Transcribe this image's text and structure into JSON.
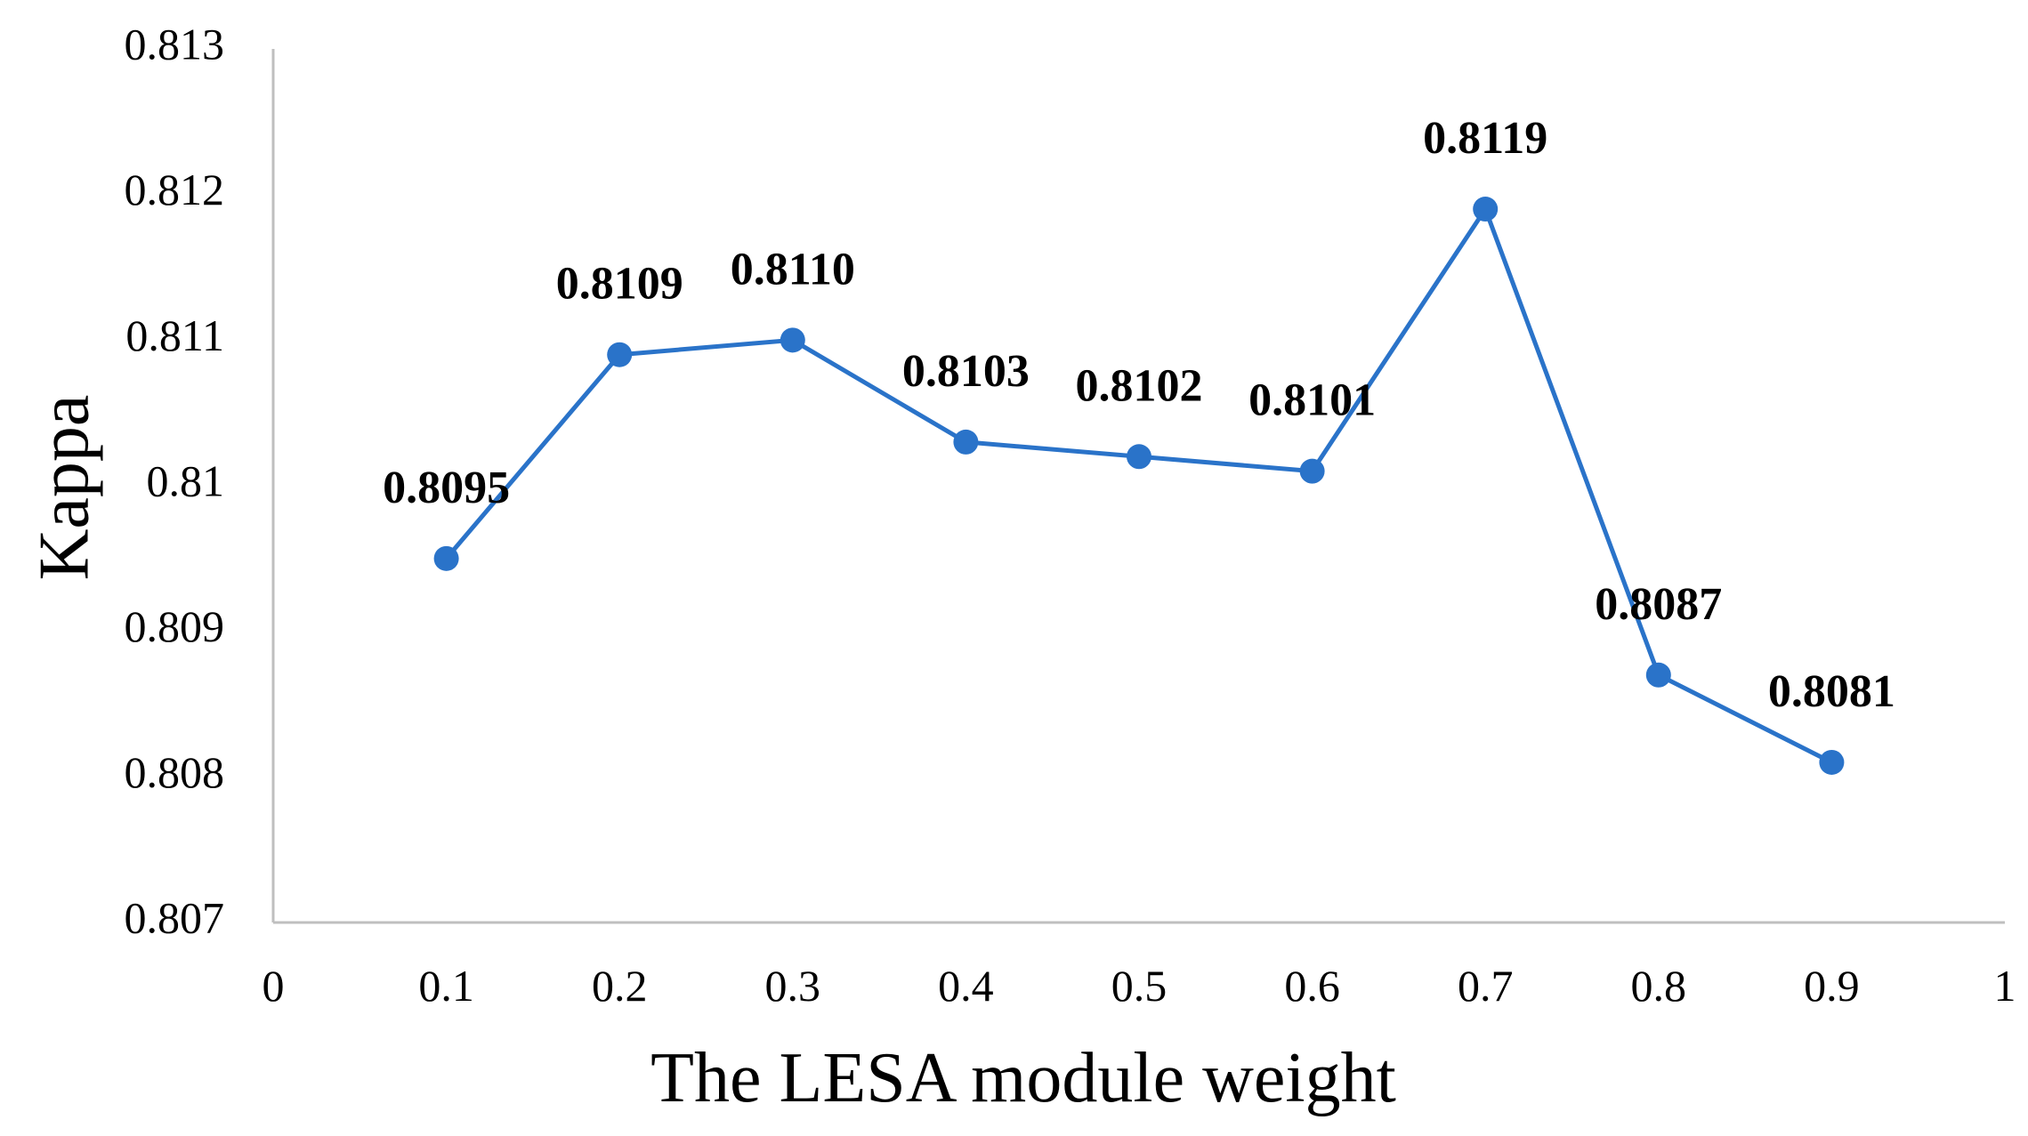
{
  "chart_data": {
    "type": "line",
    "title": "",
    "xlabel": "The LESA module weight",
    "ylabel": "Kappa",
    "xlim": [
      0,
      1
    ],
    "ylim": [
      0.807,
      0.813
    ],
    "x_ticks": [
      "0",
      "0.1",
      "0.2",
      "0.3",
      "0.4",
      "0.5",
      "0.6",
      "0.7",
      "0.8",
      "0.9",
      "1"
    ],
    "y_ticks": [
      "0.807",
      "0.808",
      "0.809",
      "0.81",
      "0.811",
      "0.812",
      "0.813"
    ],
    "grid": false,
    "legend": "none",
    "series": [
      {
        "name": "Kappa",
        "color": "#2a73c9",
        "x": [
          0.1,
          0.2,
          0.3,
          0.4,
          0.5,
          0.6,
          0.7,
          0.8,
          0.9
        ],
        "values": [
          0.8095,
          0.8109,
          0.811,
          0.8103,
          0.8102,
          0.8101,
          0.8119,
          0.8087,
          0.8081
        ],
        "labels": [
          "0.8095",
          "0.8109",
          "0.8110",
          "0.8103",
          "0.8102",
          "0.8101",
          "0.8119",
          "0.8087",
          "0.8081"
        ]
      }
    ]
  }
}
